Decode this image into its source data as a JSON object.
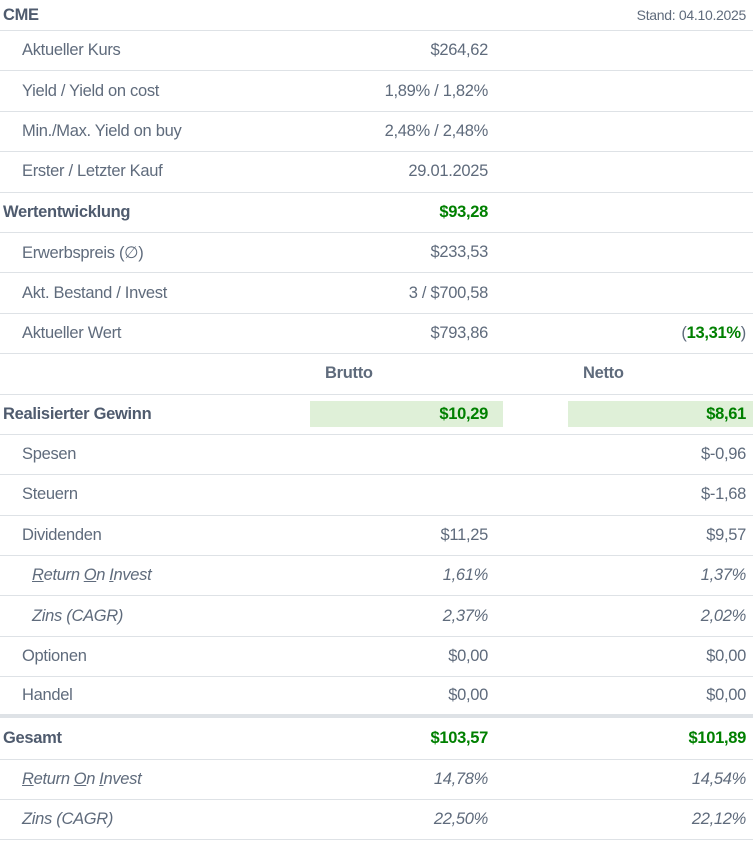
{
  "header": {
    "title": "CME",
    "stand": "Stand: 04.10.2025"
  },
  "rows": {
    "kurs": {
      "label": "Aktueller Kurs",
      "value": "$264,62"
    },
    "yield": {
      "label": "Yield / Yield on cost",
      "value": "1,89% / 1,82%"
    },
    "minmax": {
      "label": "Min./Max. Yield on buy",
      "value": "2,48% / 2,48%"
    },
    "kauf": {
      "label": "Erster / Letzter Kauf",
      "value": "29.01.2025"
    },
    "wert": {
      "label": "Wertentwicklung",
      "value": "$93,28"
    },
    "erwerb": {
      "label": "Erwerbspreis (∅)",
      "value": "$233,53"
    },
    "bestand": {
      "label": "Akt. Bestand / Invest",
      "value": "3 / $700,58"
    },
    "aktwert": {
      "label": "Aktueller Wert",
      "value": "$793,86",
      "pct_open": "(",
      "pct": "13,31%",
      "pct_close": ")"
    }
  },
  "columns": {
    "brutto": "Brutto",
    "netto": "Netto"
  },
  "gewinn": {
    "label": "Realisierter Gewinn",
    "brutto": "$10,29",
    "netto": "$8,61"
  },
  "spesen": {
    "label": "Spesen",
    "netto": "$-0,96"
  },
  "steuern": {
    "label": "Steuern",
    "netto": "$-1,68"
  },
  "dividenden": {
    "label": "Dividenden",
    "brutto": "$11,25",
    "netto": "$9,57",
    "roi": {
      "words": [
        "Return",
        "On",
        "Invest"
      ],
      "brutto": "1,61%",
      "netto": "1,37%"
    },
    "zins": {
      "label": "Zins (CAGR)",
      "brutto": "2,37%",
      "netto": "2,02%"
    }
  },
  "optionen": {
    "label": "Optionen",
    "brutto": "$0,00",
    "netto": "$0,00"
  },
  "handel": {
    "label": "Handel",
    "brutto": "$0,00",
    "netto": "$0,00"
  },
  "gesamt": {
    "label": "Gesamt",
    "brutto": "$103,57",
    "netto": "$101,89",
    "roi": {
      "words": [
        "Return",
        "On",
        "Invest"
      ],
      "brutto": "14,78%",
      "netto": "14,54%"
    },
    "zins": {
      "label": "Zins (CAGR)",
      "brutto": "22,50%",
      "netto": "22,12%"
    }
  }
}
